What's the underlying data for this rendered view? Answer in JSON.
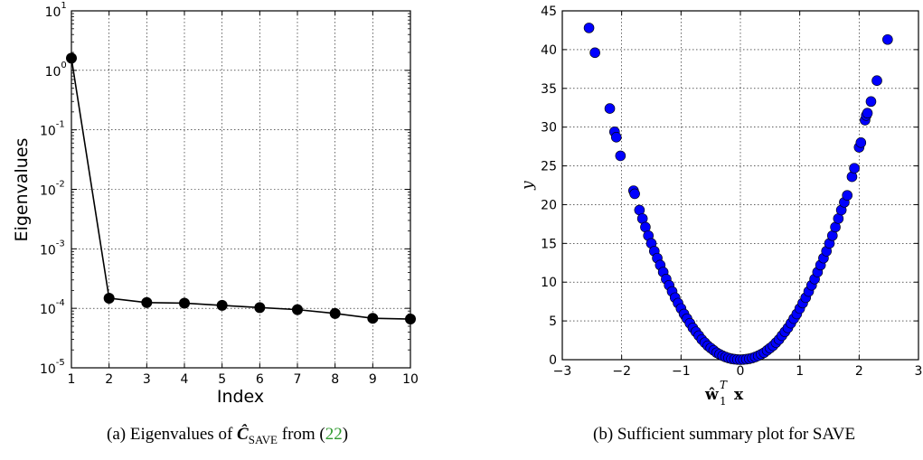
{
  "chart_data": [
    {
      "type": "line",
      "xlabel": "Index",
      "ylabel": "Eigenvalues",
      "yscale": "log",
      "xlim": [
        1,
        10
      ],
      "ylim": [
        1e-05,
        10
      ],
      "grid": true,
      "x_ticks": [
        "1",
        "2",
        "3",
        "4",
        "5",
        "6",
        "7",
        "8",
        "9",
        "10"
      ],
      "y_ticks": [
        {
          "base": "10",
          "exp": "-5"
        },
        {
          "base": "10",
          "exp": "-4"
        },
        {
          "base": "10",
          "exp": "-3"
        },
        {
          "base": "10",
          "exp": "-2"
        },
        {
          "base": "10",
          "exp": "-1"
        },
        {
          "base": "10",
          "exp": "0"
        },
        {
          "base": "10",
          "exp": "1"
        }
      ],
      "x": [
        1,
        2,
        3,
        4,
        5,
        6,
        7,
        8,
        9,
        10
      ],
      "values": [
        1.6,
        0.000148,
        0.000125,
        0.000122,
        0.000112,
        0.000103,
        9.5e-05,
        8.2e-05,
        6.8e-05,
        6.6e-05
      ],
      "color": "#000000",
      "caption": {
        "prefix": "(a) Eigenvalues of ",
        "symbol": "Ĉ",
        "subscript": "SAVE",
        "middle": " from (",
        "ref": "22",
        "suffix": ")"
      }
    },
    {
      "type": "scatter",
      "xlabel": "ŵ1T x",
      "ylabel": "y",
      "xlim": [
        -3,
        3
      ],
      "ylim": [
        0,
        45
      ],
      "grid": true,
      "x_ticks": [
        "−3",
        "−2",
        "−1",
        "0",
        "1",
        "2",
        "3"
      ],
      "y_ticks": [
        "0",
        "5",
        "10",
        "15",
        "20",
        "25",
        "30",
        "35",
        "40",
        "45"
      ],
      "marker_color": "#0000ff",
      "series": [
        {
          "points": [
            [
              -2.55,
              42.8
            ],
            [
              -2.45,
              39.6
            ],
            [
              -2.2,
              32.4
            ],
            [
              -2.12,
              29.4
            ],
            [
              -2.09,
              28.7
            ],
            [
              -2.02,
              26.3
            ],
            [
              -1.8,
              21.8
            ],
            [
              -1.78,
              21.4
            ],
            [
              -1.7,
              19.3
            ],
            [
              -1.65,
              18.2
            ],
            [
              -1.6,
              17.1
            ],
            [
              -1.55,
              16.0
            ],
            [
              -1.5,
              15.0
            ],
            [
              -1.45,
              14.0
            ],
            [
              -1.4,
              13.1
            ],
            [
              -1.35,
              12.2
            ],
            [
              -1.3,
              11.3
            ],
            [
              -1.25,
              10.4
            ],
            [
              -1.2,
              9.6
            ],
            [
              -1.15,
              8.8
            ],
            [
              -1.1,
              8.0
            ],
            [
              -1.05,
              7.3
            ],
            [
              -1.0,
              6.6
            ],
            [
              -0.95,
              5.9
            ],
            [
              -0.9,
              5.3
            ],
            [
              -0.85,
              4.7
            ],
            [
              -0.8,
              4.1
            ],
            [
              -0.75,
              3.6
            ],
            [
              -0.7,
              3.1
            ],
            [
              -0.65,
              2.6
            ],
            [
              -0.6,
              2.2
            ],
            [
              -0.55,
              1.8
            ],
            [
              -0.5,
              1.5
            ],
            [
              -0.45,
              1.2
            ],
            [
              -0.4,
              0.9
            ],
            [
              -0.35,
              0.7
            ],
            [
              -0.3,
              0.5
            ],
            [
              -0.25,
              0.35
            ],
            [
              -0.2,
              0.22
            ],
            [
              -0.15,
              0.12
            ],
            [
              -0.1,
              0.06
            ],
            [
              -0.05,
              0.02
            ],
            [
              0.0,
              0.0
            ],
            [
              0.05,
              0.02
            ],
            [
              0.1,
              0.06
            ],
            [
              0.15,
              0.12
            ],
            [
              0.2,
              0.22
            ],
            [
              0.25,
              0.35
            ],
            [
              0.3,
              0.5
            ],
            [
              0.35,
              0.7
            ],
            [
              0.4,
              0.9
            ],
            [
              0.45,
              1.2
            ],
            [
              0.5,
              1.5
            ],
            [
              0.55,
              1.8
            ],
            [
              0.6,
              2.2
            ],
            [
              0.65,
              2.6
            ],
            [
              0.7,
              3.1
            ],
            [
              0.75,
              3.6
            ],
            [
              0.8,
              4.1
            ],
            [
              0.85,
              4.7
            ],
            [
              0.9,
              5.3
            ],
            [
              0.95,
              5.9
            ],
            [
              1.0,
              6.6
            ],
            [
              1.05,
              7.3
            ],
            [
              1.1,
              8.0
            ],
            [
              1.15,
              8.8
            ],
            [
              1.2,
              9.6
            ],
            [
              1.25,
              10.4
            ],
            [
              1.3,
              11.3
            ],
            [
              1.35,
              12.2
            ],
            [
              1.4,
              13.1
            ],
            [
              1.45,
              14.0
            ],
            [
              1.5,
              15.0
            ],
            [
              1.55,
              16.0
            ],
            [
              1.6,
              17.1
            ],
            [
              1.65,
              18.2
            ],
            [
              1.7,
              19.3
            ],
            [
              1.75,
              20.3
            ],
            [
              1.8,
              21.2
            ],
            [
              1.88,
              23.6
            ],
            [
              1.92,
              24.7
            ],
            [
              2.0,
              27.4
            ],
            [
              2.03,
              28.0
            ],
            [
              2.1,
              30.9
            ],
            [
              2.12,
              31.5
            ],
            [
              2.14,
              31.8
            ],
            [
              2.2,
              33.3
            ],
            [
              2.3,
              36.0
            ],
            [
              2.48,
              41.3
            ]
          ]
        }
      ],
      "caption": {
        "text": "(b) Sufficient summary plot for SAVE"
      }
    }
  ]
}
